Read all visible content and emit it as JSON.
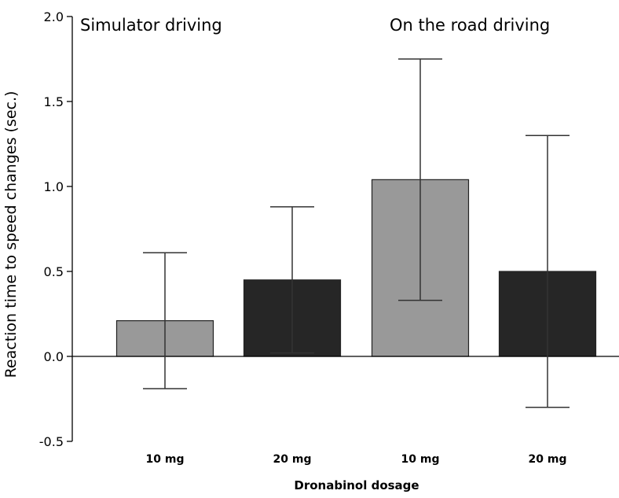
{
  "chart_data": {
    "type": "bar",
    "ylabel": "Reaction time  to speed changes (sec.)",
    "xlabel": "Dronabinol dosage",
    "ylim": [
      -0.5,
      2.0
    ],
    "yticks": [
      -0.5,
      0.0,
      0.5,
      1.0,
      1.5,
      2.0
    ],
    "ytick_labels": [
      "-0.5",
      "0.0",
      "0.5",
      "1.0",
      "1.5",
      "2.0"
    ],
    "grid": false,
    "annotations": [
      "Simulator driving",
      "On the road driving"
    ],
    "categories": [
      "10 mg",
      "20 mg",
      "10 mg",
      "20 mg"
    ],
    "values": [
      0.21,
      0.45,
      1.04,
      0.5
    ],
    "error_low": [
      -0.19,
      0.02,
      0.33,
      -0.3
    ],
    "error_high": [
      0.61,
      0.88,
      1.75,
      1.3
    ],
    "colors": [
      "#999999",
      "#262626",
      "#999999",
      "#262626"
    ]
  }
}
